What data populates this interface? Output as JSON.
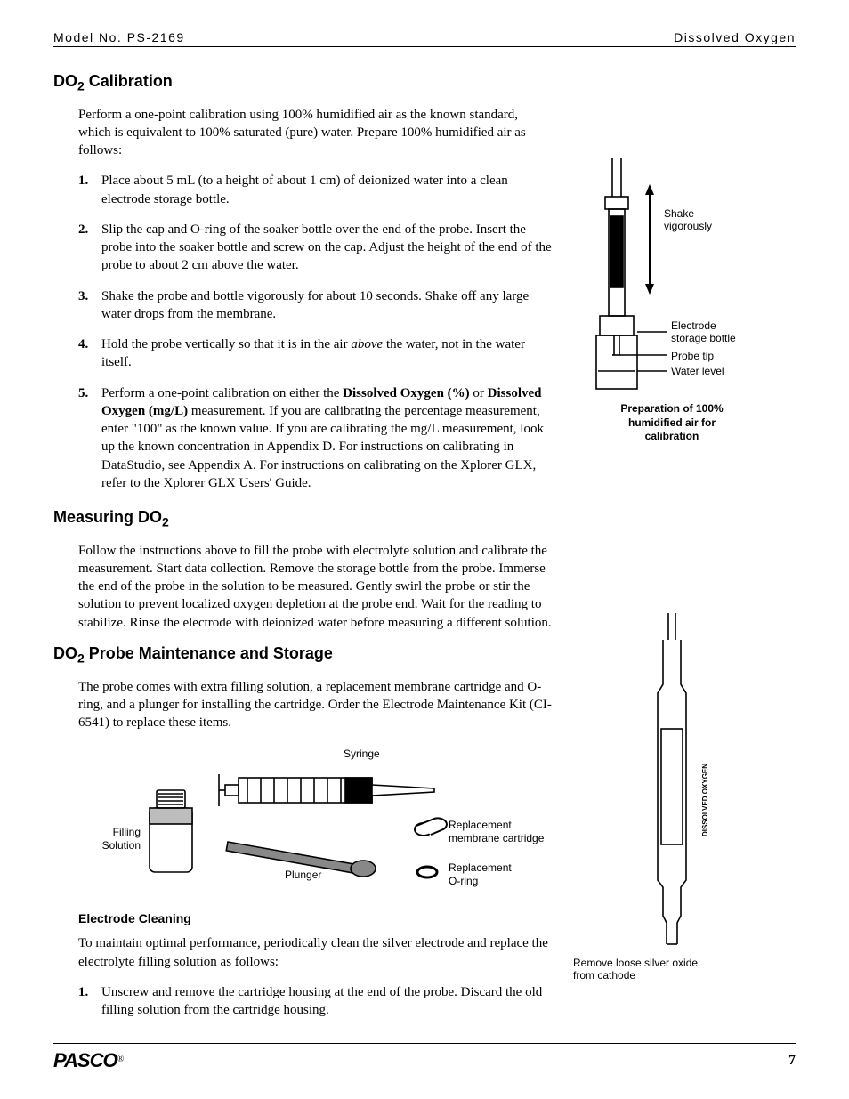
{
  "header": {
    "left": "Model No. PS-2169",
    "right": "Dissolved Oxygen"
  },
  "sections": {
    "calibration": {
      "title_pre": "DO",
      "title_sub": "2",
      "title_post": " Calibration",
      "intro": "Perform a one-point calibration using 100% humidified air as the known standard, which is equivalent to 100% saturated (pure) water. Prepare 100% humidified air as follows:",
      "steps": [
        "Place about 5 mL (to a height of about 1 cm) of deionized water into a clean electrode storage bottle.",
        "Slip the cap and O-ring of the soaker bottle over the end of the probe. Insert the probe into the soaker bottle and screw on the cap. Adjust the height of the end of the probe to about 2 cm above the water.",
        "Shake the probe and bottle vigorously for about 10 seconds. Shake off any large water drops from the membrane.",
        "Hold the probe vertically so that it is in the air |i|above|/i| the water, not in the water itself.",
        "Perform a one-point calibration on either the |b|Dissolved Oxygen (%)|/b| or |b|Dissolved Oxygen (mg/L)|/b| measurement. If you are calibrating the percentage measurement, enter \"100\" as the known value. If you are calibrating the mg/L measurement, look up the known concentration in Appendix D. For instructions on calibrating in DataStudio, see Appendix A. For instructions on calibrating on the Xplorer GLX, refer to the Xplorer GLX Users' Guide."
      ]
    },
    "measuring": {
      "title_pre": "Measuring DO",
      "title_sub": "2",
      "body": "Follow the instructions above to fill the probe with electrolyte solution and calibrate the measurement. Start data collection. Remove the storage bottle from the probe. Immerse the end of the probe in the solution to be measured. Gently swirl the probe or stir the solution to prevent localized oxygen depletion at the probe end. Wait for the reading to stabilize. Rinse the electrode with deionized water before measuring a different solution."
    },
    "maintenance": {
      "title_pre": "DO",
      "title_sub": "2",
      "title_post": " Probe Maintenance and Storage",
      "body": "The probe comes with extra filling solution, a replacement membrane cartridge and O-ring, and a plunger for installing the cartridge. Order the Electrode Maintenance Kit (CI-6541) to replace these items.",
      "electrode_cleaning_title": "Electrode Cleaning",
      "electrode_cleaning_body": "To maintain optimal performance, periodically clean the silver electrode and replace the electrolyte filling solution as follows:",
      "cleaning_steps": [
        "Unscrew and remove the cartridge housing at the end of the probe. Discard the old filling solution from the cartridge housing."
      ]
    }
  },
  "figures": {
    "calibration_bottle": {
      "labels": {
        "shake": "Shake\nvigorously",
        "bottle": "Electrode\nstorage bottle",
        "tip": "Probe tip",
        "water": "Water level"
      },
      "caption": "Preparation of 100%\nhumidified air for\ncalibration"
    },
    "kit": {
      "syringe": "Syringe",
      "filling_l1": "Filling",
      "filling_l2": "Solution",
      "plunger": "Plunger",
      "cartridge_l1": "Replacement",
      "cartridge_l2": "membrane cartridge",
      "oring_l1": "Replacement",
      "oring_l2": "O-ring"
    },
    "probe": {
      "caption": "Remove loose silver oxide\nfrom cathode"
    }
  },
  "footer": {
    "logo": "PASCO",
    "reg": "®",
    "page": "7"
  },
  "colors": {
    "text": "#000000",
    "bg": "#ffffff",
    "rule": "#000000",
    "gray_fill": "#bdbdbd"
  }
}
